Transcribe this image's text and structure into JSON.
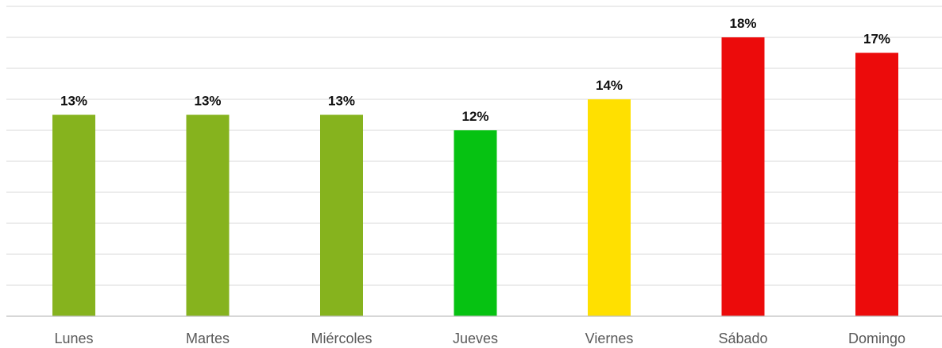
{
  "chart_data": {
    "type": "bar",
    "categories": [
      "Lunes",
      "Martes",
      "Miércoles",
      "Jueves",
      "Viernes",
      "Sábado",
      "Domingo"
    ],
    "values": [
      13,
      13,
      13,
      12,
      14,
      18,
      17
    ],
    "value_labels": [
      "13%",
      "13%",
      "13%",
      "12%",
      "14%",
      "18%",
      "17%"
    ],
    "bar_colors": [
      "#86b31e",
      "#86b31e",
      "#86b31e",
      "#06c212",
      "#ffe000",
      "#ec0b0b",
      "#ec0b0b"
    ],
    "ylim": [
      0,
      20
    ],
    "grid": true,
    "legend": "none",
    "title": "",
    "xlabel": "",
    "ylabel": ""
  }
}
